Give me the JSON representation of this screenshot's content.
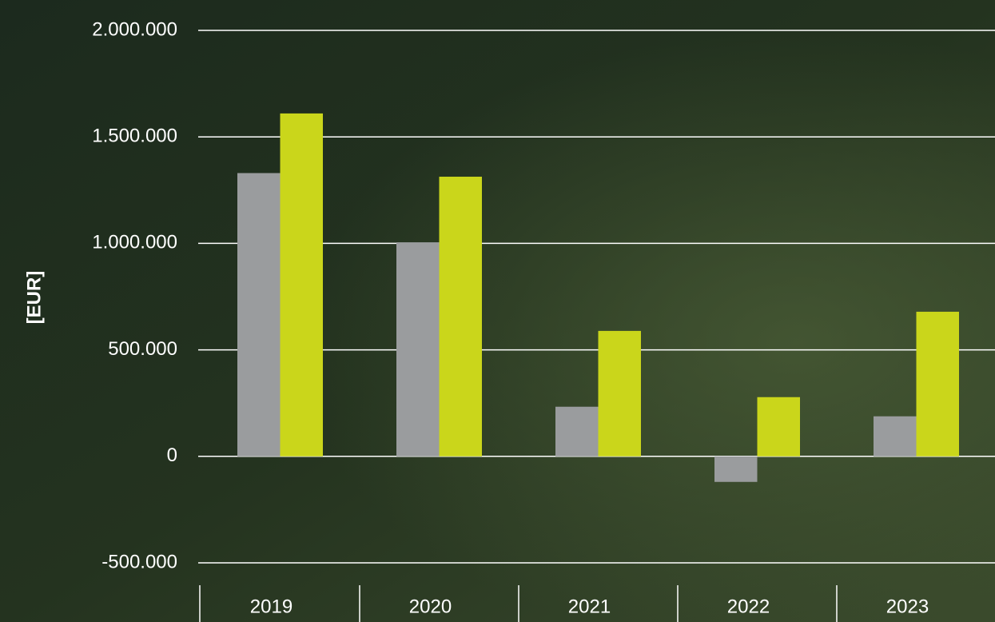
{
  "chart_data": {
    "type": "bar",
    "y_label": "[EUR]",
    "categories": [
      "2019",
      "2020",
      "2021",
      "2022",
      "2023"
    ],
    "series": [
      {
        "color": "#9a9c9e",
        "values": [
          1330000,
          1005000,
          233000,
          -120000,
          188000
        ]
      },
      {
        "color": "#cad61b",
        "values": [
          1610000,
          1313000,
          589000,
          278000,
          679000
        ]
      }
    ],
    "ylim": [
      -500000,
      2000000
    ],
    "yticks": [
      {
        "value": -500000,
        "label": "-500.000"
      },
      0,
      {
        "value": 500000,
        "label": "500.000"
      },
      {
        "value": 1000000,
        "label": "1.000.000"
      },
      {
        "value": 1500000,
        "label": "1.500.000"
      },
      {
        "value": 2000000,
        "label": "2.000.000"
      }
    ],
    "grid": true
  }
}
